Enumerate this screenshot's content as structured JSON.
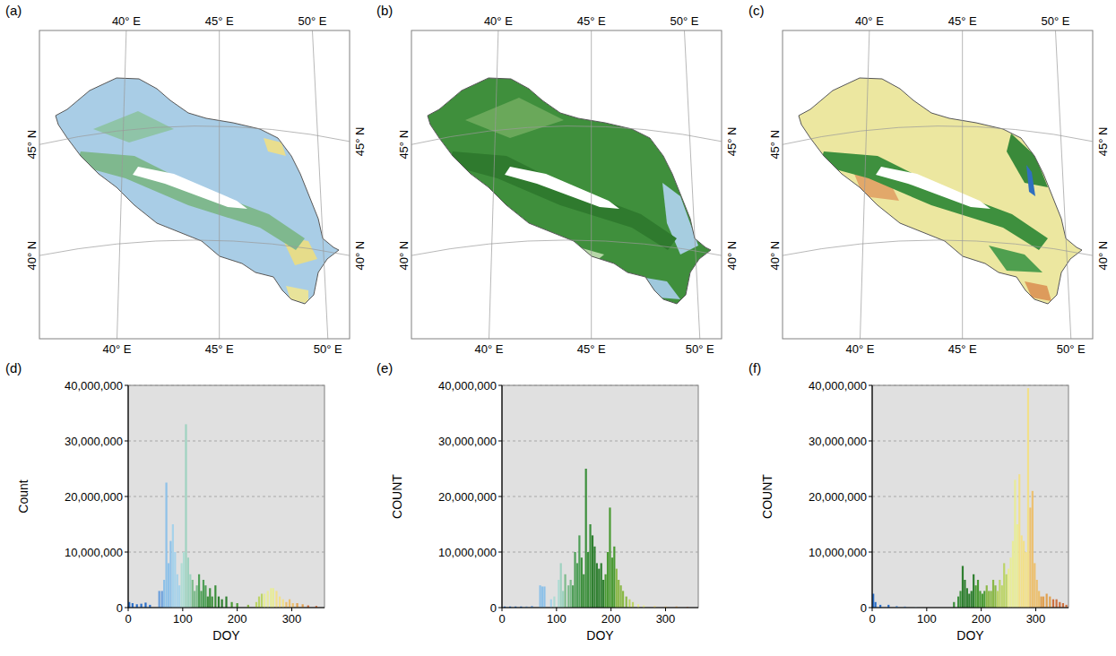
{
  "panels": [
    "(a)",
    "(b)",
    "(c)",
    "(d)",
    "(e)",
    "(f)"
  ],
  "map": {
    "lon_labels": [
      "40° E",
      "45° E",
      "50° E"
    ],
    "lat_labels": [
      "45° N",
      "40° N"
    ]
  },
  "chart_data": [
    {
      "type": "bar",
      "x_label": "DOY",
      "y_label": "Count",
      "x": [
        2,
        8,
        16,
        24,
        32,
        40,
        57,
        62,
        66,
        70,
        74,
        78,
        82,
        86,
        90,
        94,
        98,
        102,
        106,
        110,
        114,
        118,
        122,
        126,
        130,
        134,
        138,
        142,
        146,
        150,
        154,
        160,
        166,
        172,
        180,
        190,
        200,
        220,
        235,
        240,
        245,
        250,
        256,
        262,
        266,
        272,
        278,
        284,
        290,
        296,
        302,
        310,
        320,
        330,
        345
      ],
      "values": [
        1000000,
        800000,
        600000,
        700000,
        900000,
        500000,
        3000000,
        3000000,
        5000000,
        22500000,
        8000000,
        12000000,
        15000000,
        10000000,
        6000000,
        4000000,
        8000000,
        10000000,
        33000000,
        9000000,
        6000000,
        5000000,
        3000000,
        4000000,
        6000000,
        3000000,
        5000000,
        4000000,
        2000000,
        3500000,
        2000000,
        4000000,
        2000000,
        1500000,
        2000000,
        1000000,
        800000,
        500000,
        1000000,
        2000000,
        2500000,
        2500000,
        3000000,
        3500000,
        3500000,
        3000000,
        2000000,
        1500000,
        1000000,
        1500000,
        800000,
        800000,
        600000,
        400000,
        300000
      ],
      "colors": [
        "#2a6fc9",
        "#2a6fc9",
        "#2a6fc9",
        "#2a6fc9",
        "#2a6fc9",
        "#2a6fc9",
        "#6a9fdc",
        "#6a9fdc",
        "#8ec1e8",
        "#8ec1e8",
        "#8ec1e8",
        "#8ec1e8",
        "#a6d2ea",
        "#a6d2ea",
        "#a6d2ea",
        "#a6d2ea",
        "#b0dcd4",
        "#b0dcd4",
        "#9fd2c0",
        "#9fd2c0",
        "#9fd2c0",
        "#7dbb8c",
        "#7dbb8c",
        "#7dbb8c",
        "#4f9f58",
        "#4f9f58",
        "#4f9f58",
        "#4f9f58",
        "#3c8f3c",
        "#3c8f3c",
        "#3c8f3c",
        "#3c8f3c",
        "#2f7f30",
        "#2f7f30",
        "#2f7f30",
        "#4a9a34",
        "#4a9a34",
        "#8ab848",
        "#bcd468",
        "#bcd468",
        "#bcd468",
        "#e8ec98",
        "#e8ec98",
        "#e8ec98",
        "#e8ec98",
        "#f2e08a",
        "#f2e08a",
        "#f2e08a",
        "#ecc070",
        "#ecc070",
        "#ecc070",
        "#e0a050",
        "#e0a050",
        "#cc7040",
        "#cc7040"
      ],
      "xlim": [
        0,
        360
      ],
      "xticks": [
        0,
        100,
        200,
        300
      ],
      "ylim": [
        0,
        40000000
      ],
      "yticks": [
        0,
        {
          "value": 10000000,
          "label": "10,000,000"
        },
        {
          "value": 20000000,
          "label": "20,000,000"
        },
        {
          "value": 30000000,
          "label": "30,000,000"
        },
        {
          "value": 40000000,
          "label": "40,000,000"
        }
      ],
      "grid": true
    },
    {
      "type": "bar",
      "x_label": "DOY",
      "y_label": "COUNT",
      "x": [
        5,
        15,
        25,
        35,
        45,
        55,
        70,
        74,
        78,
        90,
        96,
        104,
        108,
        112,
        116,
        122,
        126,
        130,
        134,
        138,
        142,
        146,
        150,
        154,
        158,
        162,
        166,
        170,
        174,
        178,
        182,
        186,
        190,
        194,
        198,
        202,
        206,
        210,
        214,
        218,
        222,
        228,
        234,
        240,
        250,
        260,
        280,
        300,
        320,
        340
      ],
      "values": [
        200000,
        200000,
        200000,
        200000,
        200000,
        300000,
        4000000,
        3800000,
        3800000,
        1500000,
        2000000,
        5000000,
        8000000,
        3000000,
        6000000,
        4000000,
        5000000,
        4000000,
        10000000,
        8000000,
        13000000,
        9000000,
        6000000,
        25000000,
        10000000,
        15000000,
        13000000,
        11000000,
        8000000,
        7000000,
        8000000,
        5000000,
        6000000,
        10000000,
        18000000,
        9000000,
        11000000,
        7000000,
        5000000,
        4000000,
        3000000,
        2000000,
        1500000,
        1000000,
        600000,
        400000,
        300000,
        200000,
        200000,
        100000
      ],
      "colors": [
        "#2a6fc9",
        "#2a6fc9",
        "#2a6fc9",
        "#2a6fc9",
        "#6a9fdc",
        "#6a9fdc",
        "#8ec1e8",
        "#8ec1e8",
        "#8ec1e8",
        "#a6d2ea",
        "#b0dcd4",
        "#b0dcd4",
        "#9fd2c0",
        "#9fd2c0",
        "#7dbb8c",
        "#7dbb8c",
        "#7dbb8c",
        "#4f9f58",
        "#4f9f58",
        "#4f9f58",
        "#4f9f58",
        "#3c8f3c",
        "#3c8f3c",
        "#3c8f3c",
        "#3c8f3c",
        "#3c8f3c",
        "#2f7f30",
        "#2f7f30",
        "#2f7f30",
        "#2f7f30",
        "#2f7f30",
        "#2f7f30",
        "#4a9a34",
        "#4a9a34",
        "#4a9a34",
        "#4a9a34",
        "#4a9a34",
        "#8ab848",
        "#8ab848",
        "#8ab848",
        "#8ab848",
        "#8ab848",
        "#bcd468",
        "#bcd468",
        "#e8ec98",
        "#e8ec98",
        "#f2e08a",
        "#ecc070",
        "#e0a050",
        "#cc7040"
      ],
      "xlim": [
        0,
        360
      ],
      "xticks": [
        0,
        100,
        200,
        300
      ],
      "ylim": [
        0,
        40000000
      ],
      "yticks": [
        0,
        {
          "value": 10000000,
          "label": "10,000,000"
        },
        {
          "value": 20000000,
          "label": "20,000,000"
        },
        {
          "value": 30000000,
          "label": "30,000,000"
        },
        {
          "value": 40000000,
          "label": "40,000,000"
        }
      ],
      "grid": true
    },
    {
      "type": "bar",
      "x_label": "DOY",
      "y_label": "COUNT",
      "x": [
        2,
        6,
        15,
        30,
        45,
        60,
        80,
        150,
        158,
        162,
        166,
        170,
        174,
        178,
        182,
        186,
        190,
        194,
        198,
        202,
        206,
        210,
        214,
        218,
        222,
        226,
        230,
        234,
        238,
        242,
        246,
        250,
        254,
        258,
        262,
        266,
        270,
        274,
        278,
        282,
        286,
        290,
        294,
        298,
        302,
        306,
        310,
        314,
        320,
        326,
        332,
        338,
        344,
        350,
        356
      ],
      "values": [
        2500000,
        1000000,
        500000,
        500000,
        300000,
        200000,
        100000,
        1000000,
        2000000,
        3000000,
        7500000,
        5000000,
        3500000,
        2500000,
        3000000,
        6000000,
        4000000,
        5000000,
        3000000,
        2500000,
        3000000,
        4000000,
        3000000,
        3000000,
        5000000,
        4000000,
        3000000,
        5000000,
        4000000,
        8000000,
        6000000,
        7000000,
        9000000,
        12000000,
        23000000,
        15000000,
        24000000,
        13000000,
        12000000,
        10000000,
        39500000,
        18000000,
        21000000,
        8000000,
        5000000,
        3000000,
        2000000,
        2000000,
        2500000,
        2000000,
        1500000,
        1500000,
        1000000,
        800000,
        500000
      ],
      "colors": [
        "#2a6fc9",
        "#2a6fc9",
        "#2a6fc9",
        "#2a6fc9",
        "#6a9fdc",
        "#6a9fdc",
        "#a6d2ea",
        "#3c8f3c",
        "#3c8f3c",
        "#3c8f3c",
        "#2f7f30",
        "#2f7f30",
        "#2f7f30",
        "#2f7f30",
        "#2f7f30",
        "#2f7f30",
        "#4a9a34",
        "#4a9a34",
        "#4a9a34",
        "#4a9a34",
        "#4a9a34",
        "#8ab848",
        "#8ab848",
        "#8ab848",
        "#8ab848",
        "#8ab848",
        "#bcd468",
        "#bcd468",
        "#bcd468",
        "#bcd468",
        "#bcd468",
        "#e8ec98",
        "#e8ec98",
        "#e8ec98",
        "#e8ec98",
        "#e8ec98",
        "#f2e08a",
        "#f2e08a",
        "#f2e08a",
        "#f2e08a",
        "#f2e08a",
        "#ecc070",
        "#ecc070",
        "#ecc070",
        "#ecc070",
        "#ecc070",
        "#e0a050",
        "#e0a050",
        "#e0a050",
        "#e0a050",
        "#cc7040",
        "#cc7040",
        "#cc7040",
        "#cc7040",
        "#cc7040"
      ],
      "xlim": [
        0,
        360
      ],
      "xticks": [
        0,
        100,
        200,
        300
      ],
      "ylim": [
        0,
        40000000
      ],
      "yticks": [
        0,
        {
          "value": 10000000,
          "label": "10,000,000"
        },
        {
          "value": 20000000,
          "label": "20,000,000"
        },
        {
          "value": 30000000,
          "label": "30,000,000"
        },
        {
          "value": 40000000,
          "label": "40,000,000"
        }
      ],
      "grid": true
    }
  ]
}
